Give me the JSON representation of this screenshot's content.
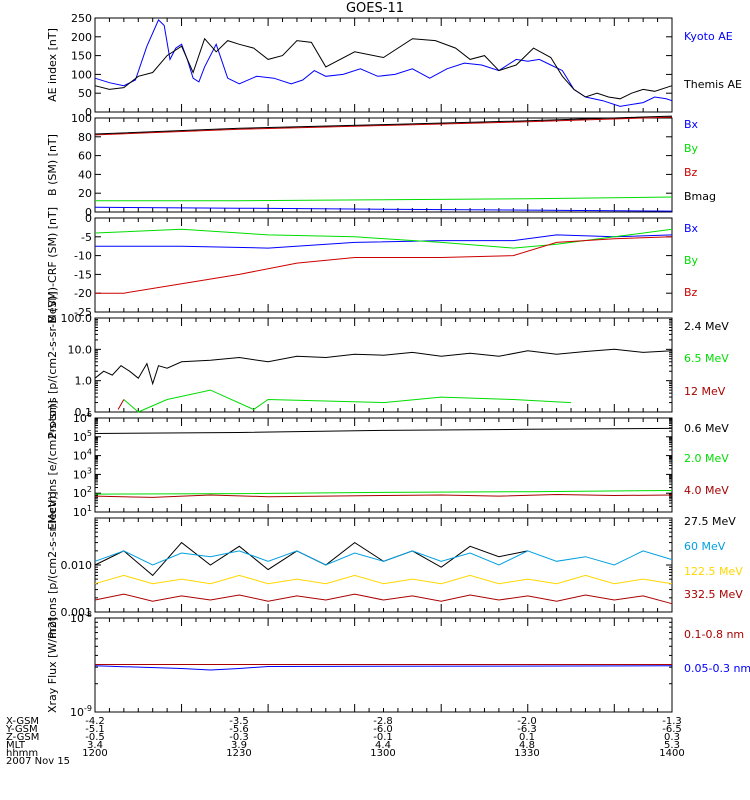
{
  "title": "GOES-11",
  "colors": {
    "black": "#000000",
    "blue": "#0000ff",
    "green": "#00dd00",
    "red": "#cc0000",
    "darkred": "#aa0000",
    "yellow": "#ffd700",
    "cyan": "#00a0e0",
    "purple": "#8000a0"
  },
  "footer": {
    "labels": [
      "X-GSM",
      "Y-GSM",
      "Z-GSM",
      "MLT",
      "hhmm",
      "2007 Nov 15"
    ],
    "columns": [
      [
        "-4.2",
        "-5.1",
        "-0.5",
        "3.4",
        "1200"
      ],
      [
        "-3.5",
        "-5.6",
        "-0.3",
        "3.9",
        "1230"
      ],
      [
        "-2.8",
        "-6.0",
        "-0.1",
        "4.4",
        "1300"
      ],
      [
        "-2.0",
        "-6.3",
        "0.1",
        "4.8",
        "1330"
      ],
      [
        "-1.3",
        "-6.5",
        "0.3",
        "5.3",
        "1400"
      ]
    ]
  },
  "chart_data": [
    {
      "type": "line",
      "ylabel": "AE index [nT]",
      "ylim": [
        0,
        250
      ],
      "yticks": [
        "0",
        "50",
        "100",
        "150",
        "200",
        "250"
      ],
      "xlim": [
        1200,
        1400
      ],
      "series": [
        {
          "name": "Kyoto AE",
          "color": "#0000ff",
          "x": [
            1200,
            1205,
            1210,
            1214,
            1218,
            1222,
            1224,
            1226,
            1228,
            1230,
            1232,
            1234,
            1236,
            1238,
            1242,
            1246,
            1250,
            1256,
            1262,
            1268,
            1272,
            1276,
            1280,
            1286,
            1292,
            1298,
            1304,
            1310,
            1316,
            1322,
            1328,
            1334,
            1340,
            1346,
            1350,
            1354,
            1358,
            1362,
            1366,
            1370,
            1376,
            1382,
            1390,
            1394,
            1398,
            1400
          ],
          "y": [
            90,
            78,
            70,
            85,
            175,
            245,
            230,
            140,
            170,
            180,
            140,
            90,
            80,
            120,
            180,
            90,
            75,
            95,
            90,
            75,
            85,
            110,
            95,
            100,
            115,
            95,
            100,
            115,
            90,
            115,
            130,
            125,
            110,
            140,
            135,
            140,
            125,
            110,
            60,
            40,
            30,
            15,
            25,
            40,
            35,
            30
          ]
        },
        {
          "name": "Themis AE",
          "color": "#000000",
          "x": [
            1200,
            1205,
            1210,
            1215,
            1220,
            1225,
            1230,
            1234,
            1238,
            1242,
            1246,
            1250,
            1255,
            1260,
            1265,
            1270,
            1275,
            1280,
            1290,
            1300,
            1310,
            1318,
            1325,
            1330,
            1335,
            1340,
            1346,
            1352,
            1358,
            1362,
            1366,
            1370,
            1374,
            1378,
            1382,
            1386,
            1390,
            1394,
            1400
          ],
          "y": [
            70,
            60,
            65,
            95,
            105,
            150,
            175,
            105,
            195,
            160,
            190,
            180,
            170,
            140,
            150,
            190,
            185,
            120,
            160,
            145,
            195,
            190,
            170,
            140,
            150,
            110,
            125,
            170,
            145,
            95,
            60,
            40,
            50,
            40,
            35,
            50,
            60,
            55,
            70
          ]
        }
      ]
    },
    {
      "type": "line",
      "ylabel": "B (SM) [nT]",
      "ylim": [
        0,
        100
      ],
      "yticks": [
        "0",
        "20",
        "40",
        "60",
        "80",
        "100"
      ],
      "xlim": [
        1200,
        1400
      ],
      "series": [
        {
          "name": "Bx",
          "color": "#0000ff",
          "x": [
            1200,
            1250,
            1300,
            1350,
            1400
          ],
          "y": [
            5,
            4,
            3,
            2,
            1
          ]
        },
        {
          "name": "By",
          "color": "#00dd00",
          "x": [
            1200,
            1250,
            1300,
            1350,
            1400
          ],
          "y": [
            12,
            12,
            13,
            14,
            16
          ]
        },
        {
          "name": "Bz",
          "color": "#cc0000",
          "x": [
            1200,
            1250,
            1300,
            1350,
            1400
          ],
          "y": [
            82,
            88,
            92,
            96,
            101
          ]
        },
        {
          "name": "Bmag",
          "color": "#000000",
          "x": [
            1200,
            1250,
            1300,
            1350,
            1400
          ],
          "y": [
            83,
            89,
            93,
            97,
            102
          ]
        }
      ]
    },
    {
      "type": "line",
      "ylabel": "B (SM)-CRF (SM) [nT]",
      "ylim": [
        -25,
        0
      ],
      "yticks": [
        "-25",
        "-20",
        "-15",
        "-10",
        "-5",
        "0"
      ],
      "xlim": [
        1200,
        1400
      ],
      "series": [
        {
          "name": "Bx",
          "color": "#0000ff",
          "x": [
            1200,
            1230,
            1260,
            1290,
            1320,
            1345,
            1360,
            1380,
            1400
          ],
          "y": [
            -7.5,
            -7.5,
            -8,
            -6.5,
            -6,
            -6,
            -4.5,
            -5,
            -4.5
          ]
        },
        {
          "name": "By",
          "color": "#00dd00",
          "x": [
            1200,
            1230,
            1260,
            1290,
            1320,
            1345,
            1360,
            1380,
            1400
          ],
          "y": [
            -4,
            -3,
            -4.5,
            -5,
            -6.5,
            -8,
            -7,
            -5,
            -3
          ]
        },
        {
          "name": "Bz",
          "color": "#cc0000",
          "x": [
            1200,
            1210,
            1230,
            1250,
            1270,
            1290,
            1320,
            1345,
            1360,
            1380,
            1400
          ],
          "y": [
            -20,
            -20,
            -17.5,
            -15,
            -12,
            -10.5,
            -10.5,
            -10,
            -6.5,
            -5.5,
            -5
          ]
        }
      ]
    },
    {
      "type": "line",
      "ylabel": "Protons [p/(cm2-s-sr-MeV)]",
      "yscale": "log",
      "ylim": [
        0.1,
        100
      ],
      "yticks": [
        "0.1",
        "1.0",
        "10.0",
        "100.0"
      ],
      "xlim": [
        1200,
        1400
      ],
      "series": [
        {
          "name": "2.4 MeV",
          "color": "#000000",
          "x": [
            1200,
            1203,
            1206,
            1209,
            1212,
            1215,
            1218,
            1220,
            1222,
            1225,
            1230,
            1240,
            1250,
            1260,
            1270,
            1280,
            1290,
            1300,
            1310,
            1320,
            1330,
            1340,
            1350,
            1360,
            1370,
            1380,
            1390,
            1400
          ],
          "y": [
            1.2,
            2.0,
            1.5,
            3.0,
            2.0,
            1.2,
            3.5,
            0.8,
            3.0,
            2.5,
            4.0,
            4.5,
            5.5,
            4.0,
            6.0,
            5.5,
            7.0,
            6.5,
            8.0,
            6.0,
            7.5,
            6.0,
            9.0,
            7.0,
            8.5,
            10.0,
            8.0,
            9.0
          ]
        },
        {
          "name": "6.5 MeV",
          "color": "#00dd00",
          "x": [
            1210,
            1215,
            1225,
            1240,
            1255,
            1260,
            1300,
            1320,
            1345,
            1365
          ],
          "y": [
            0.25,
            0.1,
            0.25,
            0.5,
            0.12,
            0.25,
            0.2,
            0.3,
            0.25,
            0.2
          ]
        },
        {
          "name": "12 MeV",
          "color": "#aa0000",
          "x": [
            1208,
            1210
          ],
          "y": [
            0.12,
            0.25
          ]
        }
      ]
    },
    {
      "type": "line",
      "ylabel": "Electrons [e/(cm2-s-sr)]",
      "yscale": "log",
      "ylim": [
        10,
        1000000
      ],
      "yticks": [
        "10^1",
        "10^2",
        "10^3",
        "10^4",
        "10^5",
        "10^6"
      ],
      "xlim": [
        1200,
        1400
      ],
      "series": [
        {
          "name": "0.6 MeV",
          "color": "#000000",
          "x": [
            1200,
            1250,
            1300,
            1350,
            1400
          ],
          "y": [
            150000,
            170000,
            220000,
            250000,
            280000
          ]
        },
        {
          "name": "2.0 MeV",
          "color": "#00dd00",
          "x": [
            1200,
            1250,
            1300,
            1350,
            1400
          ],
          "y": [
            90,
            95,
            110,
            120,
            140
          ]
        },
        {
          "name": "4.0 MeV",
          "color": "#aa0000",
          "x": [
            1200,
            1220,
            1240,
            1260,
            1280,
            1300,
            1320,
            1340,
            1360,
            1380,
            1400
          ],
          "y": [
            70,
            60,
            80,
            65,
            70,
            75,
            80,
            70,
            85,
            75,
            80
          ]
        }
      ]
    },
    {
      "type": "line",
      "ylabel": "Protons [p/(cm2-s-sr-MeV)]",
      "yscale": "log",
      "ylim": [
        0.001,
        0.1
      ],
      "yticks": [
        "0.001",
        "0.010"
      ],
      "xlim": [
        1200,
        1400
      ],
      "series": [
        {
          "name": "27.5 MeV",
          "color": "#000000",
          "x": [
            1200,
            1210,
            1220,
            1230,
            1240,
            1250,
            1260,
            1270,
            1280,
            1290,
            1300,
            1310,
            1320,
            1330,
            1340,
            1350
          ],
          "y": [
            0.01,
            0.02,
            0.006,
            0.03,
            0.01,
            0.025,
            0.008,
            0.02,
            0.01,
            0.03,
            0.012,
            0.02,
            0.009,
            0.025,
            0.015,
            0.02
          ]
        },
        {
          "name": "60 MeV",
          "color": "#00a0e0",
          "x": [
            1200,
            1210,
            1220,
            1230,
            1240,
            1250,
            1260,
            1270,
            1280,
            1290,
            1300,
            1310,
            1320,
            1330,
            1340,
            1350,
            1360,
            1370,
            1380,
            1390,
            1400
          ],
          "y": [
            0.012,
            0.02,
            0.01,
            0.018,
            0.015,
            0.02,
            0.012,
            0.02,
            0.01,
            0.018,
            0.012,
            0.02,
            0.012,
            0.018,
            0.01,
            0.02,
            0.012,
            0.015,
            0.01,
            0.02,
            0.013
          ]
        },
        {
          "name": "122.5 MeV",
          "color": "#ffd700",
          "x": [
            1200,
            1210,
            1220,
            1230,
            1240,
            1250,
            1260,
            1270,
            1280,
            1290,
            1300,
            1310,
            1320,
            1330,
            1340,
            1350,
            1360,
            1370,
            1380,
            1390,
            1400
          ],
          "y": [
            0.004,
            0.006,
            0.004,
            0.005,
            0.004,
            0.006,
            0.004,
            0.005,
            0.004,
            0.006,
            0.004,
            0.005,
            0.004,
            0.006,
            0.004,
            0.005,
            0.004,
            0.006,
            0.004,
            0.005,
            0.004
          ]
        },
        {
          "name": "332.5 MeV",
          "color": "#aa0000",
          "x": [
            1200,
            1210,
            1220,
            1230,
            1240,
            1250,
            1260,
            1270,
            1280,
            1290,
            1300,
            1310,
            1320,
            1330,
            1340,
            1350,
            1360,
            1370,
            1380,
            1390,
            1400
          ],
          "y": [
            0.0018,
            0.0024,
            0.0017,
            0.0022,
            0.0018,
            0.0023,
            0.0017,
            0.0022,
            0.0018,
            0.0024,
            0.0018,
            0.0022,
            0.0017,
            0.0023,
            0.0018,
            0.0022,
            0.0017,
            0.0023,
            0.0018,
            0.0022,
            0.0015
          ]
        }
      ]
    },
    {
      "type": "line",
      "ylabel": "Xray Flux [W/m2]",
      "yscale": "log",
      "ylim": [
        1e-09,
        1e-08
      ],
      "yticks": [
        "10^-9",
        "10^-8"
      ],
      "xlim": [
        1200,
        1400
      ],
      "series": [
        {
          "name": "0.1-0.8 nm",
          "color": "#aa0000",
          "x": [
            1200,
            1400
          ],
          "y": [
            3.2e-09,
            3.2e-09
          ]
        },
        {
          "name": "0.05-0.3 nm",
          "color": "#0000ff",
          "x": [
            1200,
            1230,
            1240,
            1250,
            1260,
            1400
          ],
          "y": [
            3.1e-09,
            2.9e-09,
            2.8e-09,
            2.9e-09,
            3.05e-09,
            3.1e-09
          ]
        }
      ]
    }
  ]
}
